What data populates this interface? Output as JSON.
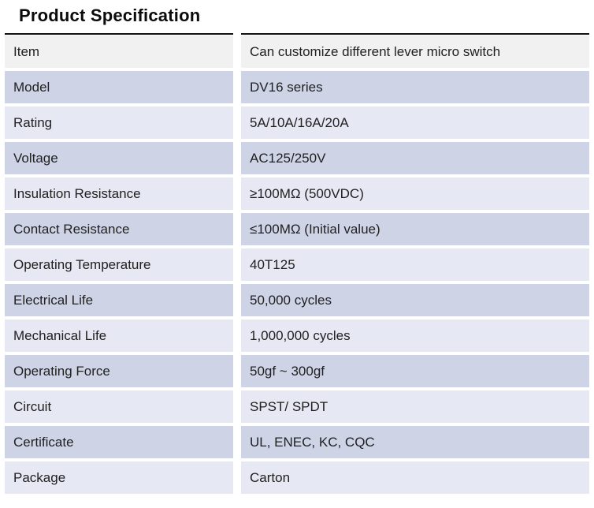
{
  "title": "Product Specification",
  "colors": {
    "row_gray": "#f1f1f1",
    "row_dark": "#ced3e6",
    "row_light": "#e6e8f4",
    "rule": "#111111",
    "text": "#212121"
  },
  "table": {
    "rows": [
      {
        "label": "Item",
        "value": "Can customize different lever micro switch",
        "bg": "gray"
      },
      {
        "label": "Model",
        "value": "DV16 series",
        "bg": "dark"
      },
      {
        "label": "Rating",
        "value": "5A/10A/16A/20A",
        "bg": "light"
      },
      {
        "label": "Voltage",
        "value": "AC125/250V",
        "bg": "dark"
      },
      {
        "label": "Insulation Resistance",
        "value": "≥100MΩ (500VDC)",
        "bg": "light"
      },
      {
        "label": "Contact Resistance",
        "value": "≤100MΩ (Initial value)",
        "bg": "dark"
      },
      {
        "label": "Operating Temperature",
        "value": "40T125",
        "bg": "light"
      },
      {
        "label": "Electrical Life",
        "value": "50,000 cycles",
        "bg": "dark"
      },
      {
        "label": "Mechanical Life",
        "value": "1,000,000 cycles",
        "bg": "light"
      },
      {
        "label": "Operating Force",
        "value": "50gf ~ 300gf",
        "bg": "dark"
      },
      {
        "label": "Circuit",
        "value": "SPST/ SPDT",
        "bg": "light"
      },
      {
        "label": "Certificate",
        "value": "UL, ENEC, KC, CQC",
        "bg": "dark"
      },
      {
        "label": "Package",
        "value": "Carton",
        "bg": "light"
      }
    ]
  }
}
